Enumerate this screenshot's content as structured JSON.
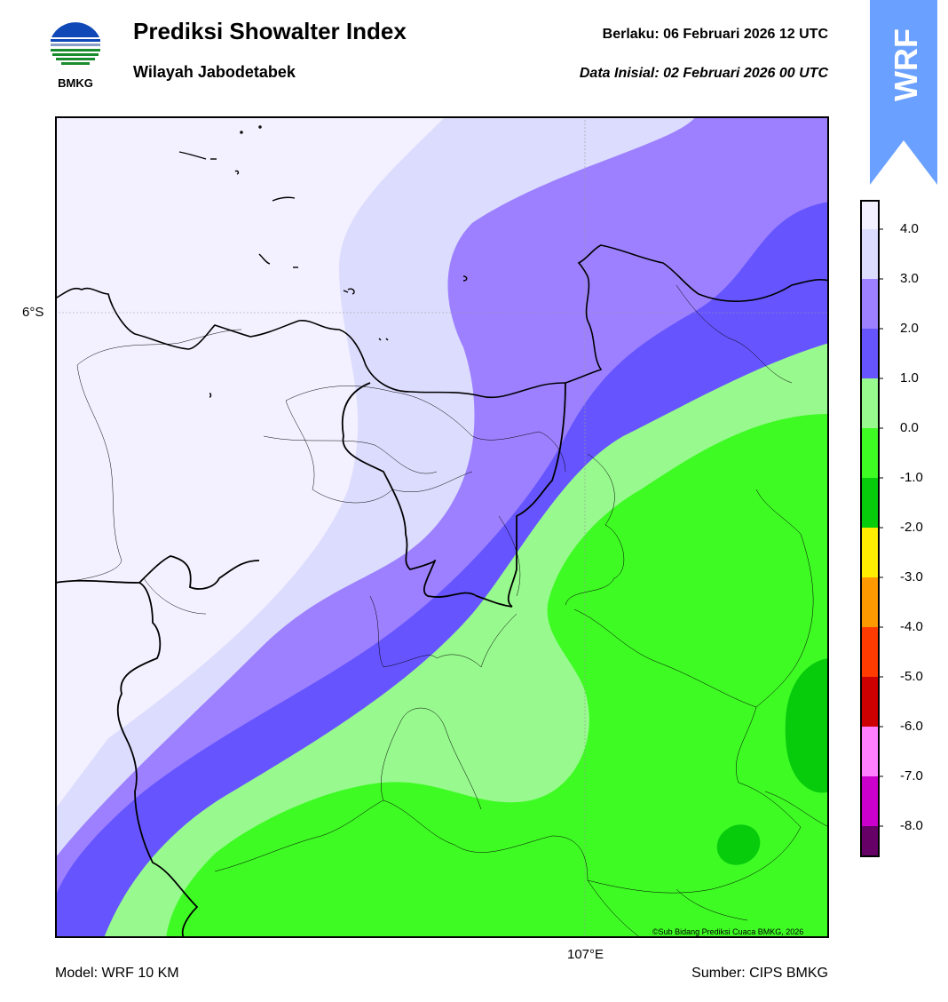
{
  "header": {
    "title": "Prediksi Showalter Index",
    "subtitle": "Wilayah Jabodetabek",
    "valid_time": "Berlaku:  06 Februari 2026 12 UTC",
    "initial_data": "Data Inisial:  02 Februari 2026 00 UTC"
  },
  "logo": {
    "icon": "bmkg-logo-icon",
    "text": "BMKG"
  },
  "badge": {
    "text": "WRF",
    "color": "#6aa0ff"
  },
  "map": {
    "lat_label": "6°S",
    "lon_label": "107°E",
    "copyright": "©Sub Bidang Prediksi Cuaca BMKG, 2026"
  },
  "footer": {
    "model": "Model: WRF 10 KM",
    "source": "Sumber: CIPS BMKG"
  },
  "colorbar": {
    "levels": [
      "4.0",
      "3.0",
      "2.0",
      "1.0",
      "0.0",
      "-1.0",
      "-2.0",
      "-3.0",
      "-4.0",
      "-5.0",
      "-6.0",
      "-7.0",
      "-8.0"
    ],
    "colors": [
      "#f3f1ff",
      "#dcdcfe",
      "#9d80ff",
      "#6655ff",
      "#98fa8e",
      "#3efb24",
      "#07cc0c",
      "#ffee00",
      "#ff9900",
      "#ff3b00",
      "#cc0000",
      "#ff7fff",
      "#cc00cc",
      "#660066"
    ]
  }
}
